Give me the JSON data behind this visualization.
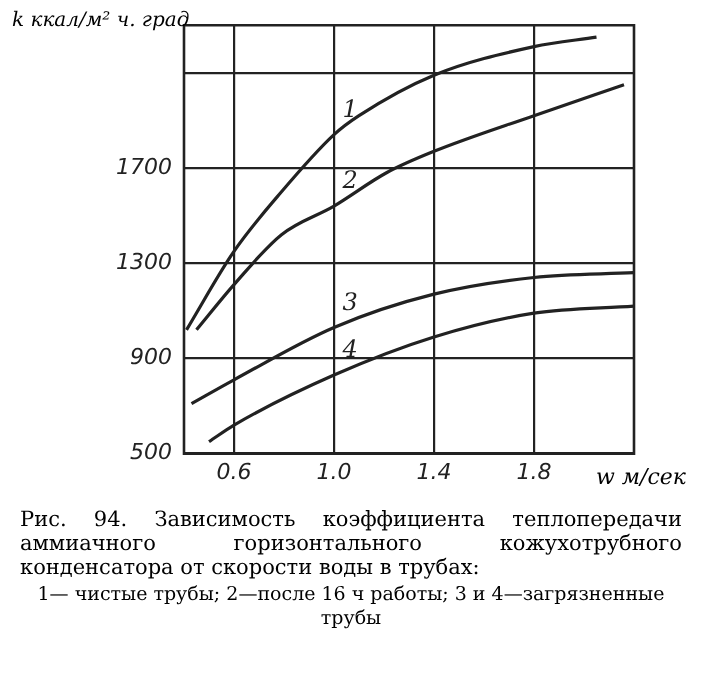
{
  "chart_data": {
    "type": "line",
    "ylabel": "k ккал/м² ч. град",
    "xlabel": "w м/сек",
    "xlim": [
      0.4,
      2.2
    ],
    "xticks": [
      {
        "value": 0.6,
        "label": "0.6"
      },
      {
        "value": 1.0,
        "label": "1.0"
      },
      {
        "value": 1.4,
        "label": "1.4"
      },
      {
        "value": 1.8,
        "label": "1.8"
      }
    ],
    "ylim": [
      500,
      2300
    ],
    "yticks": [
      500,
      900,
      1300,
      1700,
      {
        "value": 2100,
        "label": null
      }
    ],
    "grid": true,
    "legend": false,
    "marker": "none",
    "line_style": "solid",
    "series": [
      {
        "name": "1",
        "color": "#222222",
        "x": [
          0.41,
          0.6,
          0.79,
          1.0,
          1.1,
          1.4,
          1.8,
          2.05
        ],
        "values": [
          1020,
          1350,
          1600,
          1840,
          1920,
          2090,
          2210,
          2250
        ]
      },
      {
        "name": "2",
        "color": "#222222",
        "x": [
          0.45,
          0.6,
          0.79,
          1.0,
          1.21,
          1.4,
          1.8,
          2.16
        ],
        "values": [
          1020,
          1210,
          1420,
          1540,
          1680,
          1770,
          1920,
          2050
        ]
      },
      {
        "name": "3",
        "color": "#222222",
        "x": [
          0.43,
          0.6,
          1.0,
          1.4,
          1.8,
          2.2
        ],
        "values": [
          710,
          810,
          1030,
          1170,
          1240,
          1260
        ]
      },
      {
        "name": "4",
        "color": "#222222",
        "x": [
          0.5,
          0.6,
          1.0,
          1.4,
          1.8,
          2.2
        ],
        "values": [
          550,
          620,
          830,
          990,
          1090,
          1120
        ]
      }
    ],
    "annotations": [
      "Рис. 94. Зависимость коэффициента теплопередачи аммиачного горизонтального кожухотрубного конденсатора от скорости воды в трубах:",
      "1— чистые трубы; 2—после 16 ч работы; 3 и 4—загрязненные трубы"
    ]
  }
}
